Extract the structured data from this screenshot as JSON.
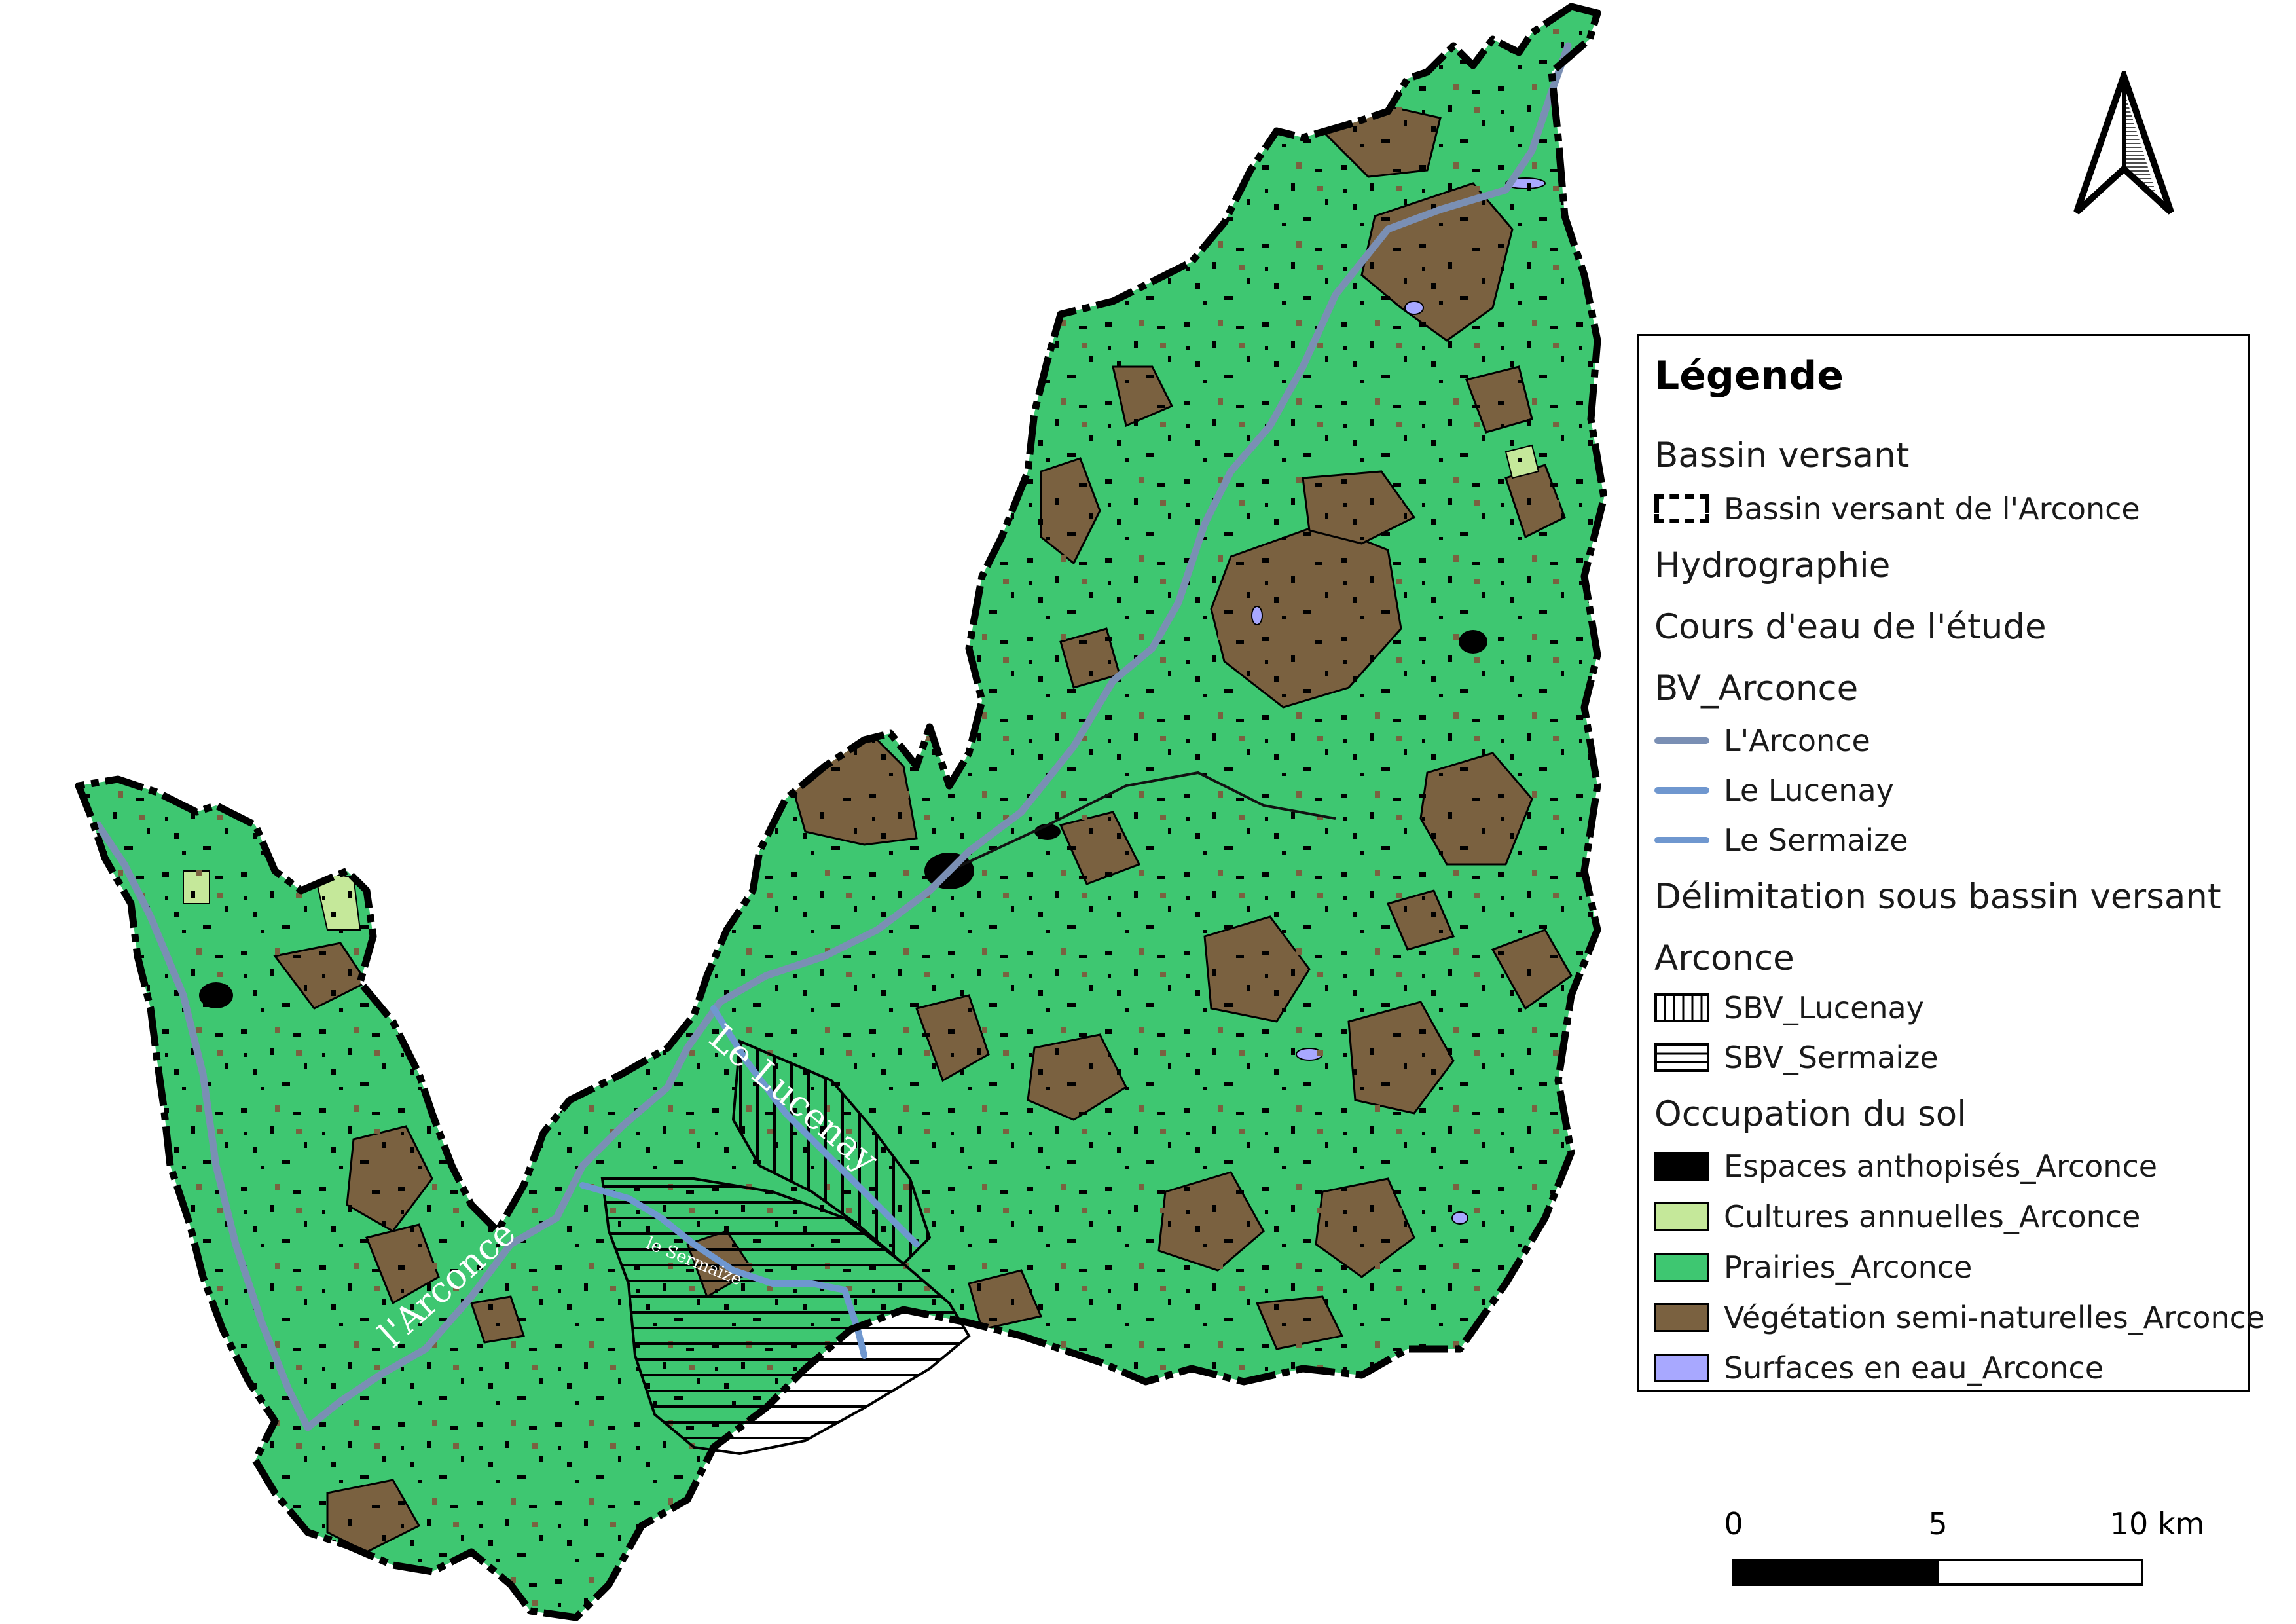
{
  "colors": {
    "prairies": "#3ec771",
    "vegetation": "#7a6140",
    "cultures": "#c5e89a",
    "anthropises": "#000000",
    "eau": "#a8a8ff",
    "arconce": "#7a8fb4",
    "lucenay": "#6f97cf",
    "sermaize": "#6f97cf",
    "boundary": "#000000"
  },
  "map_labels": {
    "arconce": "l'Arconce",
    "lucenay": "Le Lucenay",
    "sermaize": "le Sermaize"
  },
  "legend": {
    "title": "Légende",
    "sections": [
      {
        "heading": "Bassin versant",
        "items": [
          {
            "symbol": "boundary",
            "label": "Bassin versant de l'Arconce"
          }
        ]
      },
      {
        "heading": "Hydrographie",
        "items": []
      },
      {
        "heading": "Cours d'eau de l'étude",
        "items": []
      },
      {
        "heading": "BV_Arconce",
        "items": [
          {
            "symbol": "line",
            "color": "#7a8fb4",
            "label": "L'Arconce"
          },
          {
            "symbol": "line",
            "color": "#6f97cf",
            "label": "Le Lucenay"
          },
          {
            "symbol": "line",
            "color": "#6f97cf",
            "label": "Le Sermaize"
          }
        ]
      },
      {
        "heading": "Délimitation sous bassin versant",
        "items": []
      },
      {
        "heading": "Arconce",
        "items": [
          {
            "symbol": "vhatch",
            "label": "SBV_Lucenay"
          },
          {
            "symbol": "hhatch",
            "label": "SBV_Sermaize"
          }
        ]
      },
      {
        "heading": "Occupation du sol",
        "items": [
          {
            "symbol": "fill",
            "color": "#000000",
            "label": "Espaces anthopisés_Arconce"
          },
          {
            "symbol": "fill",
            "color": "#c5e89a",
            "label": "Cultures annuelles_Arconce"
          },
          {
            "symbol": "fill",
            "color": "#3ec771",
            "label": "Prairies_Arconce"
          },
          {
            "symbol": "fill",
            "color": "#7a6140",
            "label": "Végétation semi-naturelles_Arconce"
          },
          {
            "symbol": "fill",
            "color": "#a8a8ff",
            "label": "Surfaces en eau_Arconce"
          }
        ]
      }
    ]
  },
  "scale_bar": {
    "labels": [
      "0",
      "5",
      "10 km"
    ]
  },
  "north_arrow": {
    "icon": "north-arrow-icon"
  }
}
